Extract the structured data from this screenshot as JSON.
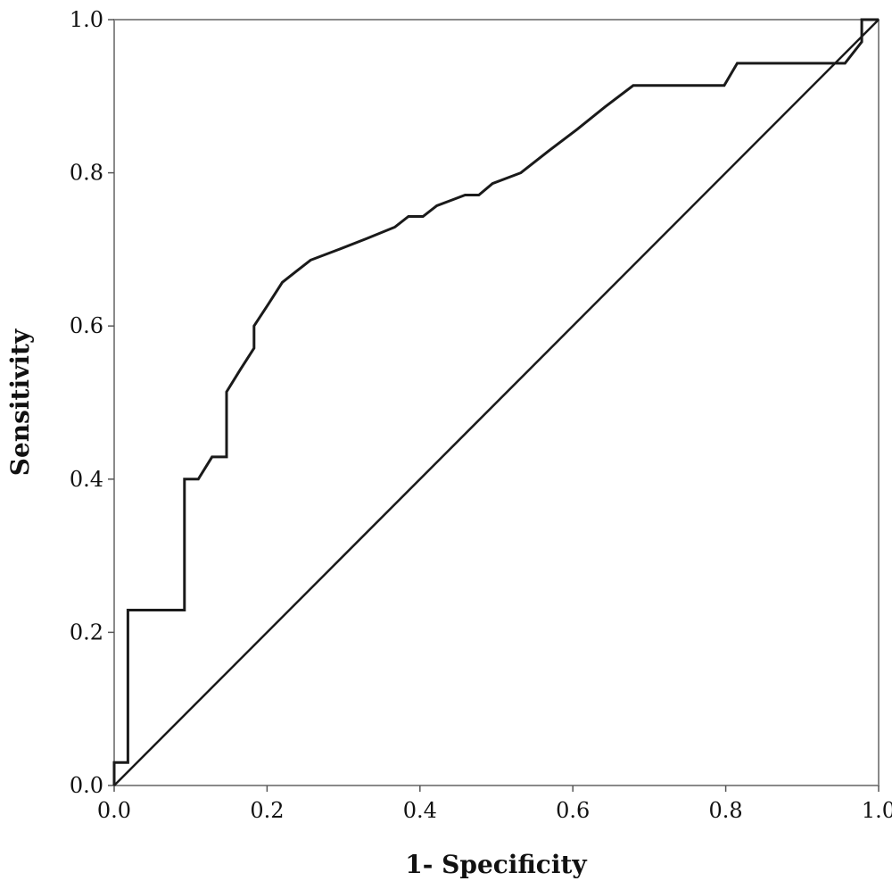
{
  "chart_data": {
    "type": "line",
    "xlabel": "1- Specificity",
    "ylabel": "Sensitivity",
    "xlim": [
      0.0,
      1.0
    ],
    "ylim": [
      0.0,
      1.0
    ],
    "x_ticks": [
      "0.0",
      "0.2",
      "0.4",
      "0.6",
      "0.8",
      "1.0"
    ],
    "y_ticks": [
      "0.0",
      "0.2",
      "0.4",
      "0.6",
      "0.8",
      "1.0"
    ],
    "grid": false,
    "legend": "none",
    "series": [
      {
        "x": [
          0.0,
          0.0,
          0.018,
          0.018,
          0.092,
          0.092,
          0.11,
          0.128,
          0.147,
          0.147,
          0.165,
          0.183,
          0.183,
          0.202,
          0.22,
          0.239,
          0.257,
          0.294,
          0.33,
          0.367,
          0.385,
          0.404,
          0.422,
          0.459,
          0.477,
          0.495,
          0.532,
          0.569,
          0.606,
          0.642,
          0.679,
          0.716,
          0.752,
          0.775,
          0.798,
          0.815,
          0.84,
          0.87,
          0.9,
          0.93,
          0.956,
          0.978,
          0.978,
          0.983,
          0.983,
          1.0
        ],
        "y": [
          0.0,
          0.03,
          0.03,
          0.229,
          0.229,
          0.4,
          0.4,
          0.429,
          0.429,
          0.514,
          0.543,
          0.571,
          0.6,
          0.629,
          0.657,
          0.672,
          0.686,
          0.7,
          0.714,
          0.729,
          0.743,
          0.743,
          0.757,
          0.771,
          0.771,
          0.786,
          0.8,
          0.829,
          0.857,
          0.886,
          0.914,
          0.914,
          0.914,
          0.914,
          0.914,
          0.943,
          0.943,
          0.943,
          0.943,
          0.943,
          0.943,
          0.971,
          1.0,
          1.0,
          1.0,
          1.0
        ]
      },
      {
        "x": [
          0.0,
          1.0
        ],
        "y": [
          0.0,
          1.0
        ]
      }
    ]
  }
}
